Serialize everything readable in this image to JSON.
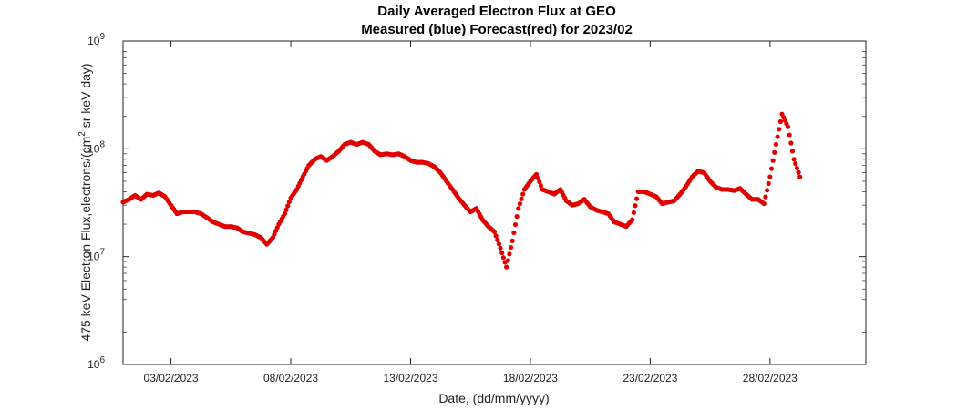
{
  "chart_data": {
    "type": "scatter",
    "title": "Daily Averaged Electron Flux at GEO",
    "subtitle": "Measured (blue) Forecast(red) for 2023/02",
    "xlabel": "Date, (dd/mm/yyyy)",
    "ylabel_parts": [
      "475 keV Electron Flux,electrons/(cm",
      "2",
      " sr keV day)"
    ],
    "yscale": "log",
    "ylim": [
      1000000,
      1000000000
    ],
    "y_ticks": [
      {
        "value": 1000000,
        "base": "10",
        "exp": "6"
      },
      {
        "value": 10000000,
        "base": "10",
        "exp": "7"
      },
      {
        "value": 100000000,
        "base": "10",
        "exp": "8"
      },
      {
        "value": 1000000000,
        "base": "10",
        "exp": "9"
      }
    ],
    "xlim": [
      "2023-02-01",
      "2023-03-04"
    ],
    "x_ticks": [
      {
        "date": "2023-02-03",
        "label": "03/02/2023"
      },
      {
        "date": "2023-02-08",
        "label": "08/02/2023"
      },
      {
        "date": "2023-02-13",
        "label": "13/02/2023"
      },
      {
        "date": "2023-02-18",
        "label": "18/02/2023"
      },
      {
        "date": "2023-02-23",
        "label": "23/02/2023"
      },
      {
        "date": "2023-02-28",
        "label": "28/02/2023"
      }
    ],
    "grid": false,
    "marker_color": "#e00000",
    "series": [
      {
        "color": "#e00000",
        "points": [
          [
            "2023-02-01 00:00",
            32000000
          ],
          [
            "2023-02-01 06:00",
            34000000
          ],
          [
            "2023-02-01 12:00",
            37000000
          ],
          [
            "2023-02-01 18:00",
            34000000
          ],
          [
            "2023-02-02 00:00",
            38000000
          ],
          [
            "2023-02-02 06:00",
            37000000
          ],
          [
            "2023-02-02 12:00",
            39000000
          ],
          [
            "2023-02-02 18:00",
            36000000
          ],
          [
            "2023-02-03 00:00",
            30000000
          ],
          [
            "2023-02-03 06:00",
            25000000
          ],
          [
            "2023-02-03 12:00",
            26000000
          ],
          [
            "2023-02-03 18:00",
            26000000
          ],
          [
            "2023-02-04 00:00",
            26000000
          ],
          [
            "2023-02-04 06:00",
            25000000
          ],
          [
            "2023-02-04 12:00",
            23000000
          ],
          [
            "2023-02-04 18:00",
            21000000
          ],
          [
            "2023-02-05 00:00",
            20000000
          ],
          [
            "2023-02-05 06:00",
            19000000
          ],
          [
            "2023-02-05 12:00",
            19000000
          ],
          [
            "2023-02-05 18:00",
            18500000
          ],
          [
            "2023-02-06 00:00",
            17000000
          ],
          [
            "2023-02-06 06:00",
            16500000
          ],
          [
            "2023-02-06 12:00",
            16000000
          ],
          [
            "2023-02-06 18:00",
            15000000
          ],
          [
            "2023-02-07 00:00",
            13000000
          ],
          [
            "2023-02-07 06:00",
            15000000
          ],
          [
            "2023-02-07 12:00",
            20000000
          ],
          [
            "2023-02-07 18:00",
            25000000
          ],
          [
            "2023-02-08 00:00",
            35000000
          ],
          [
            "2023-02-08 06:00",
            42000000
          ],
          [
            "2023-02-08 12:00",
            55000000
          ],
          [
            "2023-02-08 18:00",
            70000000
          ],
          [
            "2023-02-09 00:00",
            80000000
          ],
          [
            "2023-02-09 06:00",
            85000000
          ],
          [
            "2023-02-09 12:00",
            78000000
          ],
          [
            "2023-02-09 18:00",
            85000000
          ],
          [
            "2023-02-10 00:00",
            95000000
          ],
          [
            "2023-02-10 06:00",
            110000000
          ],
          [
            "2023-02-10 12:00",
            115000000
          ],
          [
            "2023-02-10 18:00",
            110000000
          ],
          [
            "2023-02-11 00:00",
            115000000
          ],
          [
            "2023-02-11 06:00",
            110000000
          ],
          [
            "2023-02-11 12:00",
            95000000
          ],
          [
            "2023-02-11 18:00",
            88000000
          ],
          [
            "2023-02-12 00:00",
            90000000
          ],
          [
            "2023-02-12 06:00",
            88000000
          ],
          [
            "2023-02-12 12:00",
            90000000
          ],
          [
            "2023-02-12 18:00",
            85000000
          ],
          [
            "2023-02-13 00:00",
            78000000
          ],
          [
            "2023-02-13 06:00",
            75000000
          ],
          [
            "2023-02-13 12:00",
            75000000
          ],
          [
            "2023-02-13 18:00",
            73000000
          ],
          [
            "2023-02-14 00:00",
            68000000
          ],
          [
            "2023-02-14 06:00",
            60000000
          ],
          [
            "2023-02-14 12:00",
            50000000
          ],
          [
            "2023-02-14 18:00",
            42000000
          ],
          [
            "2023-02-15 00:00",
            35000000
          ],
          [
            "2023-02-15 06:00",
            30000000
          ],
          [
            "2023-02-15 12:00",
            26000000
          ],
          [
            "2023-02-15 18:00",
            28000000
          ],
          [
            "2023-02-16 00:00",
            22000000
          ],
          [
            "2023-02-16 06:00",
            19000000
          ],
          [
            "2023-02-16 12:00",
            17000000
          ],
          [
            "2023-02-16 18:00",
            12000000
          ],
          [
            "2023-02-17 00:00",
            8000000
          ],
          [
            "2023-02-17 06:00",
            14000000
          ],
          [
            "2023-02-17 12:00",
            28000000
          ],
          [
            "2023-02-17 18:00",
            42000000
          ],
          [
            "2023-02-18 00:00",
            50000000
          ],
          [
            "2023-02-18 06:00",
            58000000
          ],
          [
            "2023-02-18 12:00",
            42000000
          ],
          [
            "2023-02-18 18:00",
            40000000
          ],
          [
            "2023-02-19 00:00",
            38000000
          ],
          [
            "2023-02-19 06:00",
            42000000
          ],
          [
            "2023-02-19 12:00",
            33000000
          ],
          [
            "2023-02-19 18:00",
            30000000
          ],
          [
            "2023-02-20 00:00",
            31000000
          ],
          [
            "2023-02-20 06:00",
            34000000
          ],
          [
            "2023-02-20 12:00",
            29000000
          ],
          [
            "2023-02-20 18:00",
            27000000
          ],
          [
            "2023-02-21 00:00",
            26000000
          ],
          [
            "2023-02-21 06:00",
            25000000
          ],
          [
            "2023-02-21 12:00",
            21000000
          ],
          [
            "2023-02-21 18:00",
            20000000
          ],
          [
            "2023-02-22 00:00",
            19000000
          ],
          [
            "2023-02-22 06:00",
            22000000
          ],
          [
            "2023-02-22 12:00",
            40000000
          ],
          [
            "2023-02-22 18:00",
            40000000
          ],
          [
            "2023-02-23 00:00",
            38000000
          ],
          [
            "2023-02-23 06:00",
            36000000
          ],
          [
            "2023-02-23 12:00",
            31000000
          ],
          [
            "2023-02-23 18:00",
            32000000
          ],
          [
            "2023-02-24 00:00",
            33000000
          ],
          [
            "2023-02-24 06:00",
            38000000
          ],
          [
            "2023-02-24 12:00",
            45000000
          ],
          [
            "2023-02-24 18:00",
            55000000
          ],
          [
            "2023-02-25 00:00",
            62000000
          ],
          [
            "2023-02-25 06:00",
            60000000
          ],
          [
            "2023-02-25 12:00",
            50000000
          ],
          [
            "2023-02-25 18:00",
            44000000
          ],
          [
            "2023-02-26 00:00",
            42000000
          ],
          [
            "2023-02-26 06:00",
            42000000
          ],
          [
            "2023-02-26 12:00",
            41000000
          ],
          [
            "2023-02-26 18:00",
            43000000
          ],
          [
            "2023-02-27 00:00",
            38000000
          ],
          [
            "2023-02-27 06:00",
            34000000
          ],
          [
            "2023-02-27 12:00",
            34000000
          ],
          [
            "2023-02-27 18:00",
            31000000
          ],
          [
            "2023-02-28 00:00",
            55000000
          ],
          [
            "2023-02-28 06:00",
            110000000
          ],
          [
            "2023-02-28 12:00",
            210000000
          ],
          [
            "2023-02-28 18:00",
            160000000
          ],
          [
            "2023-03-01 00:00",
            80000000
          ],
          [
            "2023-03-01 06:00",
            55000000
          ]
        ]
      }
    ]
  }
}
